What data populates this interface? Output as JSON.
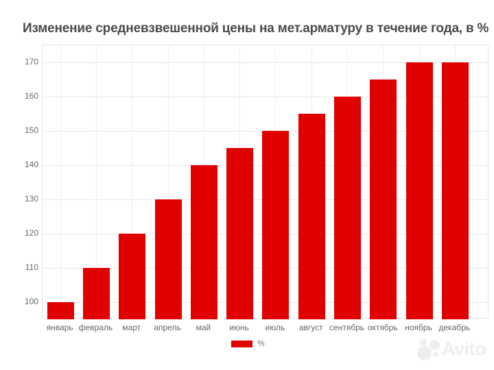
{
  "chart_data": {
    "type": "bar",
    "title": "Изменение средневзвешенной цены на мет.арматуру в течение года, в %",
    "categories": [
      "январь",
      "февраль",
      "март",
      "апрель",
      "май",
      "июнь",
      "июль",
      "август",
      "сентябрь",
      "октябрь",
      "ноябрь",
      "декабрь"
    ],
    "series": [
      {
        "name": "%",
        "values": [
          100,
          110,
          120,
          130,
          140,
          145,
          150,
          155,
          160,
          165,
          170,
          170
        ]
      }
    ],
    "xlabel": "",
    "ylabel": "",
    "ylim": [
      95,
      175
    ],
    "yticks": [
      100,
      110,
      120,
      130,
      140,
      150,
      160,
      170
    ],
    "grid": true,
    "legend": {
      "label": "%",
      "position": "bottom"
    }
  },
  "watermark": {
    "brand": "Avito"
  },
  "colors": {
    "bar": "#e10000",
    "grid": "#e7e7e7",
    "title_text": "#4a4a4a",
    "axis_text": "#666666",
    "watermark": "#eeeeee"
  }
}
